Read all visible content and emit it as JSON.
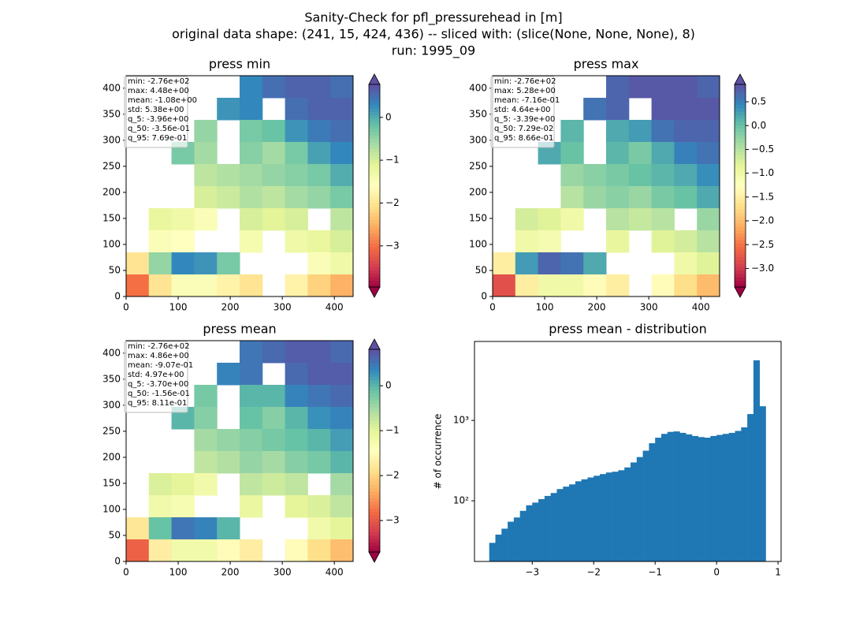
{
  "figure": {
    "title_lines": [
      "Sanity-Check for pfl_pressurehead in [m]",
      "original data shape: (241, 15, 424, 436) -- sliced with: (slice(None, None, None), 8)",
      "run: 1995_09"
    ]
  },
  "chart_data": [
    {
      "type": "heatmap",
      "title": "press min",
      "colormap": "Spectral",
      "xlim": [
        0,
        436
      ],
      "ylim": [
        0,
        424
      ],
      "xticks": [
        0,
        100,
        200,
        300,
        400
      ],
      "yticks": [
        0,
        50,
        100,
        150,
        200,
        250,
        300,
        350,
        400
      ],
      "clim": [
        -3.96,
        0.769
      ],
      "cticks": [
        {
          "value": 0,
          "label": "0"
        },
        {
          "value": -1,
          "label": "−1"
        },
        {
          "value": -2,
          "label": "−2"
        },
        {
          "value": -3,
          "label": "−3"
        }
      ],
      "stats": [
        "min: -2.76e+02",
        "max: 4.48e+00",
        "mean: -1.08e+00",
        "std: 5.38e+00",
        "q_5: -3.96e+00",
        "q_50: -3.56e-01",
        "q_95: 7.69e-01"
      ],
      "z": [
        [
          null,
          null,
          null,
          null,
          null,
          0.3,
          0.5,
          0.6,
          0.6,
          0.5
        ],
        [
          null,
          null,
          null,
          null,
          0.2,
          0.3,
          null,
          0.5,
          0.6,
          0.6
        ],
        [
          null,
          null,
          null,
          -0.5,
          null,
          -0.3,
          -0.2,
          0.2,
          0.4,
          0.5
        ],
        [
          null,
          null,
          -0.3,
          -0.6,
          null,
          -0.4,
          -0.6,
          -0.3,
          0.1,
          0.3
        ],
        [
          null,
          null,
          null,
          -0.8,
          -0.7,
          -0.6,
          -0.5,
          -0.4,
          -0.3,
          0.0
        ],
        [
          null,
          null,
          null,
          -1.0,
          -0.9,
          -0.7,
          -0.8,
          -0.6,
          -0.5,
          -0.3
        ],
        [
          null,
          -1.2,
          -1.3,
          -1.5,
          null,
          -1.0,
          -1.1,
          -1.0,
          null,
          -0.8
        ],
        [
          null,
          -1.5,
          -1.6,
          null,
          null,
          -1.4,
          null,
          -1.3,
          -1.2,
          -1.0
        ],
        [
          -2.0,
          -0.5,
          0.3,
          0.2,
          -0.3,
          null,
          null,
          null,
          -1.5,
          -1.3
        ],
        [
          -3.0,
          -2.0,
          -1.5,
          -1.5,
          -1.8,
          -2.0,
          null,
          -1.8,
          -2.2,
          -2.5
        ]
      ]
    },
    {
      "type": "heatmap",
      "title": "press max",
      "colormap": "Spectral",
      "xlim": [
        0,
        436
      ],
      "ylim": [
        0,
        424
      ],
      "xticks": [
        0,
        100,
        200,
        300,
        400
      ],
      "yticks": [
        0,
        50,
        100,
        150,
        200,
        250,
        300,
        350,
        400
      ],
      "clim": [
        -3.39,
        0.866
      ],
      "cticks": [
        {
          "value": 0.5,
          "label": "0.5"
        },
        {
          "value": 0,
          "label": "0.0"
        },
        {
          "value": -0.5,
          "label": "−0.5"
        },
        {
          "value": -1,
          "label": "−1.0"
        },
        {
          "value": -1.5,
          "label": "−1.5"
        },
        {
          "value": -2,
          "label": "−2.0"
        },
        {
          "value": -2.5,
          "label": "−2.5"
        },
        {
          "value": -3,
          "label": "−3.0"
        }
      ],
      "stats": [
        "min: -2.76e+02",
        "max: 5.28e+00",
        "mean: -7.16e-01",
        "std: 4.64e+00",
        "q_5: -3.39e+00",
        "q_50: 7.29e-02",
        "q_95: 8.66e-01"
      ],
      "z": [
        [
          null,
          null,
          null,
          null,
          null,
          0.7,
          0.8,
          0.8,
          0.8,
          0.7
        ],
        [
          null,
          null,
          null,
          null,
          0.6,
          0.7,
          null,
          0.8,
          0.8,
          0.8
        ],
        [
          null,
          null,
          null,
          0.1,
          null,
          0.2,
          0.3,
          0.6,
          0.7,
          0.7
        ],
        [
          null,
          null,
          0.2,
          0.0,
          null,
          0.1,
          -0.1,
          0.2,
          0.5,
          0.6
        ],
        [
          null,
          null,
          null,
          -0.3,
          -0.2,
          -0.1,
          0.0,
          0.1,
          0.2,
          0.4
        ],
        [
          null,
          null,
          null,
          -0.5,
          -0.3,
          -0.2,
          -0.3,
          -0.1,
          0.0,
          0.2
        ],
        [
          null,
          -0.7,
          -0.8,
          -1.0,
          null,
          -0.5,
          -0.6,
          -0.5,
          null,
          -0.3
        ],
        [
          null,
          -1.0,
          -1.1,
          null,
          null,
          -0.9,
          null,
          -0.8,
          -0.7,
          -0.5
        ],
        [
          -1.5,
          0.3,
          0.7,
          0.6,
          0.2,
          null,
          null,
          null,
          -1.0,
          -0.8
        ],
        [
          -2.8,
          -1.5,
          -1.0,
          -1.0,
          -1.3,
          -1.5,
          null,
          -1.3,
          -1.7,
          -2.0
        ]
      ]
    },
    {
      "type": "heatmap",
      "title": "press mean",
      "colormap": "Spectral",
      "xlim": [
        0,
        436
      ],
      "ylim": [
        0,
        424
      ],
      "xticks": [
        0,
        100,
        200,
        300,
        400
      ],
      "yticks": [
        0,
        50,
        100,
        150,
        200,
        250,
        300,
        350,
        400
      ],
      "clim": [
        -3.7,
        0.811
      ],
      "cticks": [
        {
          "value": 0,
          "label": "0"
        },
        {
          "value": -1,
          "label": "−1"
        },
        {
          "value": -2,
          "label": "−2"
        },
        {
          "value": -3,
          "label": "−3"
        }
      ],
      "stats": [
        "min: -2.76e+02",
        "max: 4.86e+00",
        "mean: -9.07e-01",
        "std: 4.97e+00",
        "q_5: -3.70e+00",
        "q_50: -1.56e-01",
        "q_95: 8.11e-01"
      ],
      "z": [
        [
          null,
          null,
          null,
          null,
          null,
          0.5,
          0.6,
          0.7,
          0.7,
          0.6
        ],
        [
          null,
          null,
          null,
          null,
          0.4,
          0.5,
          null,
          0.6,
          0.7,
          0.7
        ],
        [
          null,
          null,
          null,
          -0.2,
          null,
          0.0,
          0.0,
          0.4,
          0.5,
          0.6
        ],
        [
          null,
          null,
          0.0,
          -0.3,
          null,
          -0.1,
          -0.3,
          0.0,
          0.3,
          0.4
        ],
        [
          null,
          null,
          null,
          -0.5,
          -0.4,
          -0.3,
          -0.2,
          -0.1,
          0.0,
          0.2
        ],
        [
          null,
          null,
          null,
          -0.7,
          -0.6,
          -0.4,
          -0.5,
          -0.3,
          -0.2,
          0.0
        ],
        [
          null,
          -0.9,
          -1.0,
          -1.2,
          null,
          -0.7,
          -0.8,
          -0.7,
          null,
          -0.5
        ],
        [
          null,
          -1.2,
          -1.3,
          null,
          null,
          -1.1,
          null,
          -1.0,
          -0.9,
          -0.7
        ],
        [
          -1.8,
          -0.1,
          0.5,
          0.4,
          0.0,
          null,
          null,
          null,
          -1.2,
          -1.0
        ],
        [
          -2.9,
          -1.7,
          -1.2,
          -1.2,
          -1.5,
          -1.7,
          null,
          -1.5,
          -1.9,
          -2.2
        ]
      ]
    },
    {
      "type": "histogram",
      "title": "press mean - distribution",
      "y_label": "# of occurrence",
      "color": "#1f77b4",
      "log_y": true,
      "xlim": [
        -3.94,
        1.05
      ],
      "ylim": [
        17.6,
        9600
      ],
      "xticks": [
        {
          "value": -3,
          "label": "−3"
        },
        {
          "value": -2,
          "label": "−2"
        },
        {
          "value": -1,
          "label": "−1"
        },
        {
          "value": 0,
          "label": "0"
        },
        {
          "value": 1,
          "label": "1"
        }
      ],
      "yticks": [
        {
          "value": 100,
          "label": "10²"
        },
        {
          "value": 1000,
          "label": "10³"
        }
      ],
      "bins": [
        -3.7,
        -3.6,
        -3.5,
        -3.4,
        -3.3,
        -3.2,
        -3.1,
        -3.0,
        -2.9,
        -2.8,
        -2.7,
        -2.6,
        -2.5,
        -2.4,
        -2.3,
        -2.2,
        -2.1,
        -2.0,
        -1.9,
        -1.8,
        -1.7,
        -1.6,
        -1.5,
        -1.4,
        -1.3,
        -1.2,
        -1.1,
        -1.0,
        -0.9,
        -0.8,
        -0.7,
        -0.6,
        -0.5,
        -0.4,
        -0.3,
        -0.2,
        -0.1,
        0.0,
        0.1,
        0.2,
        0.3,
        0.4,
        0.5,
        0.6,
        0.7,
        0.8
      ],
      "counts": [
        30,
        38,
        45,
        55,
        62,
        75,
        88,
        95,
        105,
        115,
        125,
        140,
        150,
        160,
        175,
        185,
        195,
        205,
        215,
        225,
        230,
        240,
        260,
        300,
        350,
        420,
        520,
        610,
        680,
        720,
        730,
        700,
        670,
        640,
        620,
        610,
        640,
        660,
        680,
        700,
        740,
        820,
        1200,
        5600,
        1500
      ]
    }
  ]
}
